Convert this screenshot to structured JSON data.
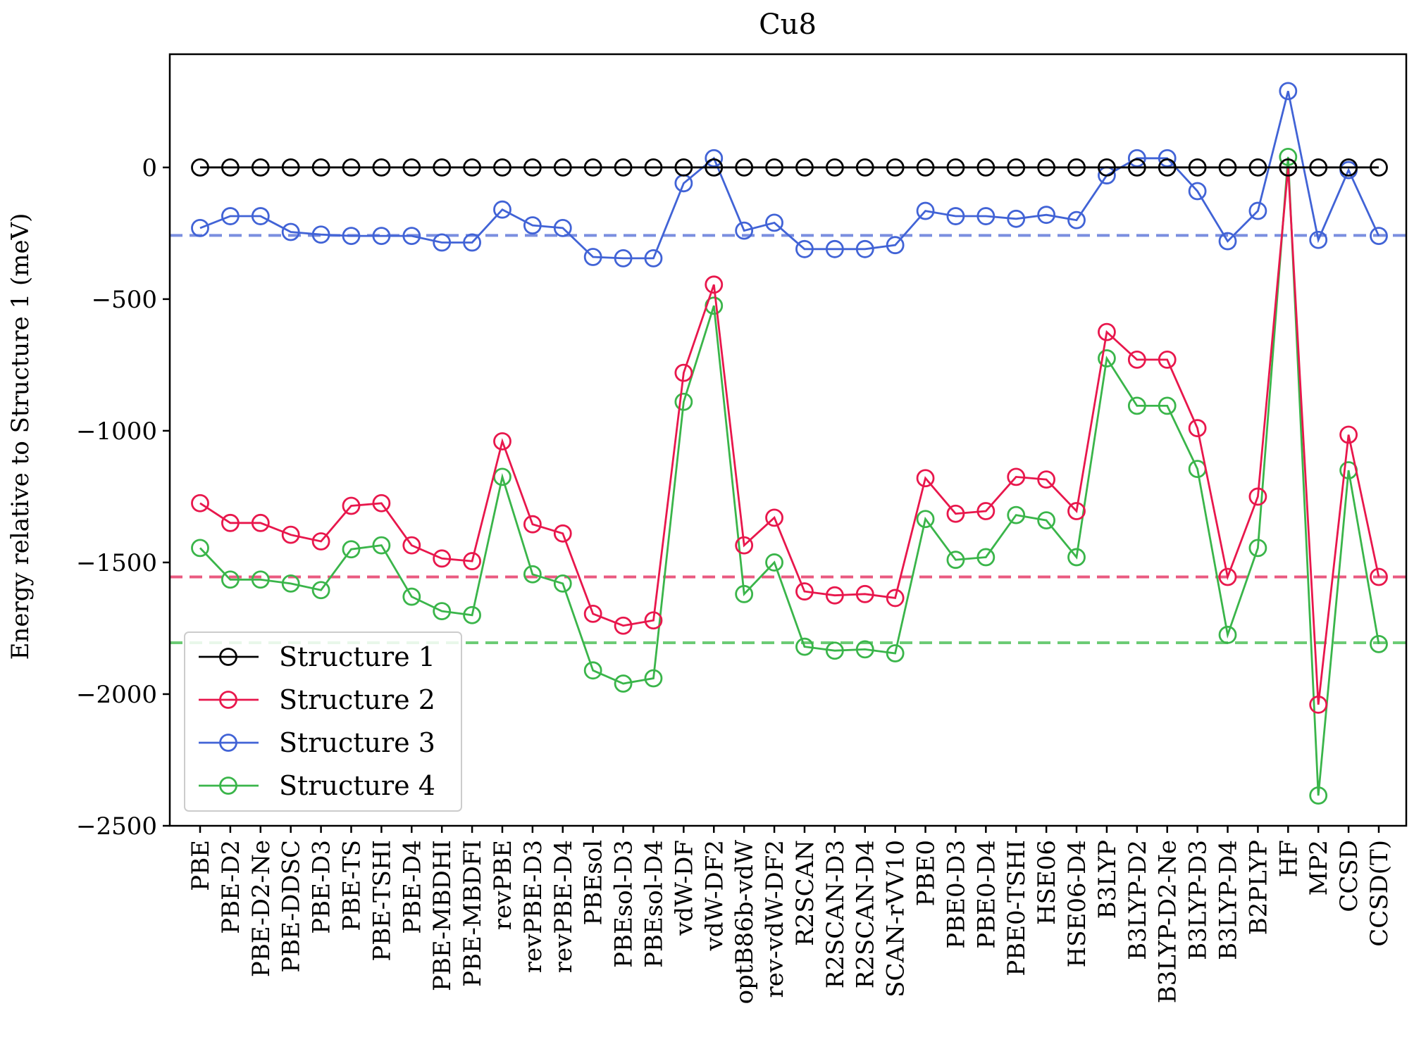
{
  "chart_data": {
    "type": "line",
    "title": "Cu8",
    "xlabel": "",
    "ylabel": "Energy relative to Structure 1 (meV)",
    "ylim": [
      -2500,
      430
    ],
    "yticks": [
      0,
      -500,
      -1000,
      -1500,
      -2000,
      -2500
    ],
    "ytick_labels": [
      "0",
      "−500",
      "−1000",
      "−1500",
      "−2000",
      "−2500"
    ],
    "grid": false,
    "legend_position": "lower-left",
    "categories": [
      "PBE",
      "PBE-D2",
      "PBE-D2-Ne",
      "PBE-DDSC",
      "PBE-D3",
      "PBE-TS",
      "PBE-TSHI",
      "PBE-D4",
      "PBE-MBDHI",
      "PBE-MBDFI",
      "revPBE",
      "revPBE-D3",
      "revPBE-D4",
      "PBEsol",
      "PBEsol-D3",
      "PBEsol-D4",
      "vdW-DF",
      "vdW-DF2",
      "optB86b-vdW",
      "rev-vdW-DF2",
      "R2SCAN",
      "R2SCAN-D3",
      "R2SCAN-D4",
      "SCAN-rVV10",
      "PBE0",
      "PBE0-D3",
      "PBE0-D4",
      "PBE0-TSHI",
      "HSE06",
      "HSE06-D4",
      "B3LYP",
      "B3LYP-D2",
      "B3LYP-D2-Ne",
      "B3LYP-D3",
      "B3LYP-D4",
      "B2PLYP",
      "HF",
      "MP2",
      "CCSD",
      "CCSD(T)"
    ],
    "series": [
      {
        "name": "Structure 1",
        "color": "#000000",
        "values": [
          0,
          0,
          0,
          0,
          0,
          0,
          0,
          0,
          0,
          0,
          0,
          0,
          0,
          0,
          0,
          0,
          0,
          0,
          0,
          0,
          0,
          0,
          0,
          0,
          0,
          0,
          0,
          0,
          0,
          0,
          0,
          0,
          0,
          0,
          0,
          0,
          0,
          0,
          0,
          0
        ]
      },
      {
        "name": "Structure 2",
        "color": "#e8174c",
        "values": [
          -1275,
          -1350,
          -1350,
          -1395,
          -1420,
          -1285,
          -1275,
          -1435,
          -1485,
          -1495,
          -1040,
          -1355,
          -1390,
          -1695,
          -1740,
          -1720,
          -780,
          -445,
          -1435,
          -1330,
          -1610,
          -1625,
          -1620,
          -1635,
          -1180,
          -1315,
          -1305,
          -1175,
          -1185,
          -1305,
          -625,
          -730,
          -730,
          -990,
          -1555,
          -1250,
          0,
          -2040,
          -1015,
          -1555
        ]
      },
      {
        "name": "Structure 3",
        "color": "#4163d6",
        "values": [
          -230,
          -185,
          -185,
          -245,
          -255,
          -260,
          -260,
          -260,
          -285,
          -285,
          -160,
          -220,
          -230,
          -340,
          -345,
          -345,
          -60,
          35,
          -240,
          -210,
          -310,
          -310,
          -310,
          -295,
          -165,
          -185,
          -185,
          -195,
          -180,
          -200,
          -30,
          35,
          35,
          -90,
          -280,
          -165,
          290,
          -275,
          -10,
          -260
        ]
      },
      {
        "name": "Structure 4",
        "color": "#3ab54a",
        "values": [
          -1445,
          -1565,
          -1565,
          -1580,
          -1605,
          -1450,
          -1435,
          -1630,
          -1685,
          -1700,
          -1175,
          -1545,
          -1580,
          -1910,
          -1960,
          -1940,
          -890,
          -525,
          -1620,
          -1500,
          -1820,
          -1835,
          -1830,
          -1845,
          -1335,
          -1490,
          -1480,
          -1320,
          -1340,
          -1480,
          -725,
          -905,
          -905,
          -1145,
          -1775,
          -1445,
          40,
          -2385,
          -1150,
          -1810
        ]
      }
    ],
    "reference_lines": [
      {
        "series": "Structure 3",
        "value": -258,
        "color": "#7b8fe0",
        "style": "dashed"
      },
      {
        "series": "Structure 2",
        "value": -1555,
        "color": "#ea5a80",
        "style": "dashed"
      },
      {
        "series": "Structure 4",
        "value": -1805,
        "color": "#6ccb75",
        "style": "dashed"
      }
    ]
  }
}
